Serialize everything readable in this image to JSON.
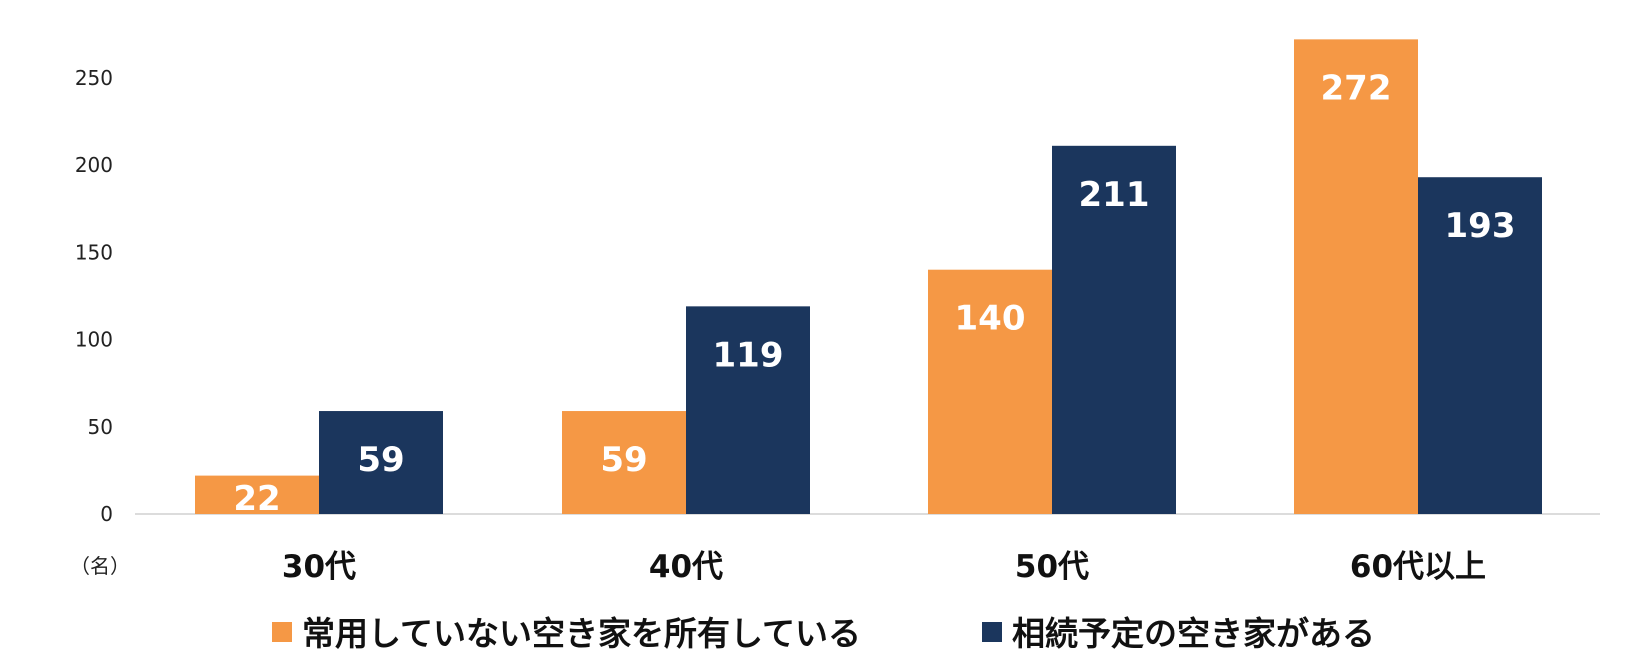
{
  "chart_data": {
    "type": "bar",
    "categories": [
      "30代",
      "40代",
      "50代",
      "60代以上"
    ],
    "series": [
      {
        "name": "常用していない空き家を所有している",
        "values": [
          22,
          59,
          140,
          272
        ],
        "color": "#F59845"
      },
      {
        "name": "相続予定の空き家がある",
        "values": [
          59,
          119,
          211,
          193
        ],
        "color": "#1B365D"
      }
    ],
    "y_ticks": [
      "0",
      "50",
      "100",
      "150",
      "200",
      "250"
    ],
    "ylim": [
      0,
      280
    ],
    "unit_label": "（名）",
    "title": "",
    "xlabel": "",
    "ylabel": "",
    "grid": false,
    "legend_position": "bottom",
    "axis_color": "#D0D0D0"
  }
}
